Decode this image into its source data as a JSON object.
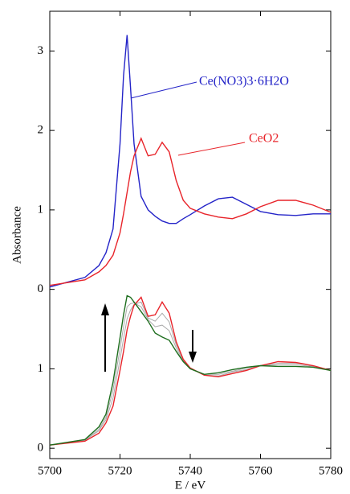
{
  "chart_data": {
    "type": "line",
    "xlabel": "E / eV",
    "ylabel": "Absorbance",
    "x": [
      5700,
      5710,
      5714,
      5716,
      5718,
      5720,
      5721,
      5722,
      5723,
      5724,
      5726,
      5728,
      5730,
      5732,
      5734,
      5736,
      5738,
      5740,
      5744,
      5748,
      5752,
      5756,
      5760,
      5765,
      5770,
      5775,
      5780
    ],
    "xlim": [
      5700,
      5780
    ],
    "xticks": [
      5700,
      5720,
      5740,
      5760,
      5780
    ],
    "ylim": [
      -0.13,
      5.5
    ],
    "yticks": [
      {
        "value": 0,
        "label": "0"
      },
      {
        "value": 1,
        "label": "1"
      },
      {
        "value": 2,
        "label": "0"
      },
      {
        "value": 3,
        "label": "1"
      },
      {
        "value": 4,
        "label": "2"
      },
      {
        "value": 5,
        "label": "3"
      }
    ],
    "series": [
      {
        "name": "Ce(NO3)3·6H2O",
        "color": "#2424c8",
        "values": [
          2.03,
          2.15,
          2.3,
          2.46,
          2.76,
          3.83,
          4.69,
          5.2,
          4.54,
          3.83,
          3.17,
          3.0,
          2.92,
          2.86,
          2.83,
          2.83,
          2.89,
          2.94,
          3.05,
          3.14,
          3.16,
          3.07,
          2.98,
          2.94,
          2.93,
          2.95,
          2.95
        ]
      },
      {
        "name": "CeO2",
        "color": "#e8242a",
        "values": [
          2.05,
          2.12,
          2.22,
          2.3,
          2.43,
          2.71,
          2.95,
          3.22,
          3.48,
          3.68,
          3.9,
          3.68,
          3.7,
          3.85,
          3.73,
          3.37,
          3.12,
          3.02,
          2.95,
          2.91,
          2.89,
          2.95,
          3.04,
          3.12,
          3.12,
          3.06,
          2.97
        ]
      },
      {
        "color": "#aaaaaa",
        "values": [
          0.04,
          0.1,
          0.24,
          0.39,
          0.73,
          1.25,
          1.53,
          1.78,
          1.82,
          1.83,
          1.78,
          1.62,
          1.53,
          1.55,
          1.48,
          1.26,
          1.1,
          1.0,
          0.93,
          0.93,
          0.97,
          1.01,
          1.04,
          1.05,
          1.05,
          1.03,
          0.98
        ]
      },
      {
        "color": "#aaaaaa",
        "values": [
          0.04,
          0.1,
          0.22,
          0.36,
          0.63,
          1.12,
          1.38,
          1.63,
          1.74,
          1.81,
          1.84,
          1.64,
          1.6,
          1.7,
          1.59,
          1.3,
          1.11,
          1.01,
          0.92,
          0.91,
          0.96,
          0.99,
          1.04,
          1.07,
          1.07,
          1.04,
          0.98
        ]
      },
      {
        "color": "#e8242a",
        "values": [
          0.04,
          0.09,
          0.19,
          0.32,
          0.53,
          0.98,
          1.22,
          1.49,
          1.66,
          1.8,
          1.9,
          1.66,
          1.68,
          1.84,
          1.7,
          1.34,
          1.12,
          1.01,
          0.92,
          0.9,
          0.94,
          0.98,
          1.04,
          1.09,
          1.08,
          1.04,
          0.98
        ]
      },
      {
        "color": "#1e6e1e",
        "values": [
          0.04,
          0.11,
          0.27,
          0.43,
          0.83,
          1.39,
          1.68,
          1.92,
          1.9,
          1.84,
          1.72,
          1.6,
          1.45,
          1.4,
          1.36,
          1.22,
          1.09,
          1.0,
          0.93,
          0.95,
          0.99,
          1.02,
          1.04,
          1.03,
          1.03,
          1.02,
          0.98
        ]
      }
    ]
  }
}
